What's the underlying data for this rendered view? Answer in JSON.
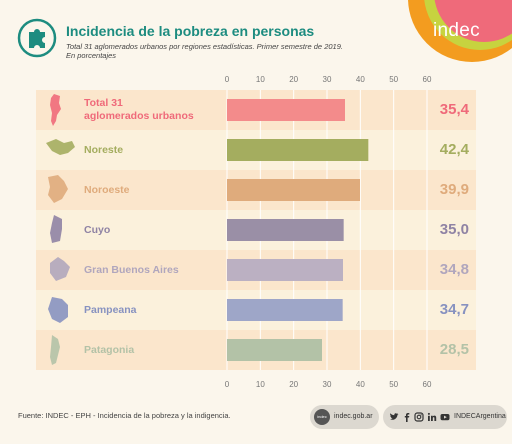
{
  "header": {
    "title": "Incidencia de la pobreza en personas",
    "subtitle_line1": "Total 31 aglomerados urbanos por regiones estadísticas. Primer semestre de 2019.",
    "subtitle_line2": "En porcentajes",
    "brand": "indec",
    "icon": "puzzle-piece-icon"
  },
  "colors": {
    "accent": "#1d8c80",
    "brand_orange": "#f39c1f",
    "brand_green": "#c7d33f",
    "brand_pink": "#ef6a7a"
  },
  "chart_data": {
    "type": "bar",
    "orientation": "horizontal",
    "xlim": [
      0,
      60
    ],
    "ticks": [
      "0",
      "10",
      "20",
      "30",
      "40",
      "50",
      "60"
    ],
    "grid": true,
    "categories": [
      "Total 31 aglomerados urbanos",
      "Noreste",
      "Noroeste",
      "Cuyo",
      "Gran Buenos Aires",
      "Pampeana",
      "Patagonia"
    ],
    "values": [
      35.4,
      42.4,
      39.9,
      35.0,
      34.8,
      34.7,
      28.5
    ],
    "value_labels": [
      "35,4",
      "42,4",
      "39,9",
      "35,0",
      "34,8",
      "34,7",
      "28,5"
    ],
    "label_lines": [
      [
        "Total 31",
        "aglomerados urbanos"
      ],
      [
        "Noreste"
      ],
      [
        "Noroeste"
      ],
      [
        "Cuyo"
      ],
      [
        "Gran Buenos Aires"
      ],
      [
        "Pampeana"
      ],
      [
        "Patagonia"
      ]
    ],
    "bar_colors": [
      "#f38b8b",
      "#a4ad5f",
      "#dfab7c",
      "#9a8fa6",
      "#bbb0c2",
      "#9ea6c8",
      "#b3c2a7"
    ],
    "label_colors": [
      "#ef6a7a",
      "#a4ad5f",
      "#dfab7c",
      "#8f83a4",
      "#b0a6bd",
      "#8792c0",
      "#b3c2a7"
    ],
    "row_bg_colors": [
      "#fbe6cc",
      "#fbf1dc",
      "#fbe6cc",
      "#fbf1dc",
      "#fbe6cc",
      "#fbf1dc",
      "#fbe6cc"
    ],
    "map_icons": [
      "argentina-map-icon",
      "noreste-map-icon",
      "noroeste-map-icon",
      "cuyo-map-icon",
      "gran-buenos-aires-map-icon",
      "pampeana-map-icon",
      "patagonia-map-icon"
    ]
  },
  "footer": {
    "source": "Fuente: INDEC - EPH - Incidencia de la pobreza y la indigencia.",
    "web_logo": "indec",
    "web": "indec.gob.ar",
    "social_handle": "INDECArgentina",
    "social_icons": [
      "twitter-icon",
      "facebook-icon",
      "instagram-icon",
      "linkedin-icon",
      "youtube-icon"
    ]
  }
}
